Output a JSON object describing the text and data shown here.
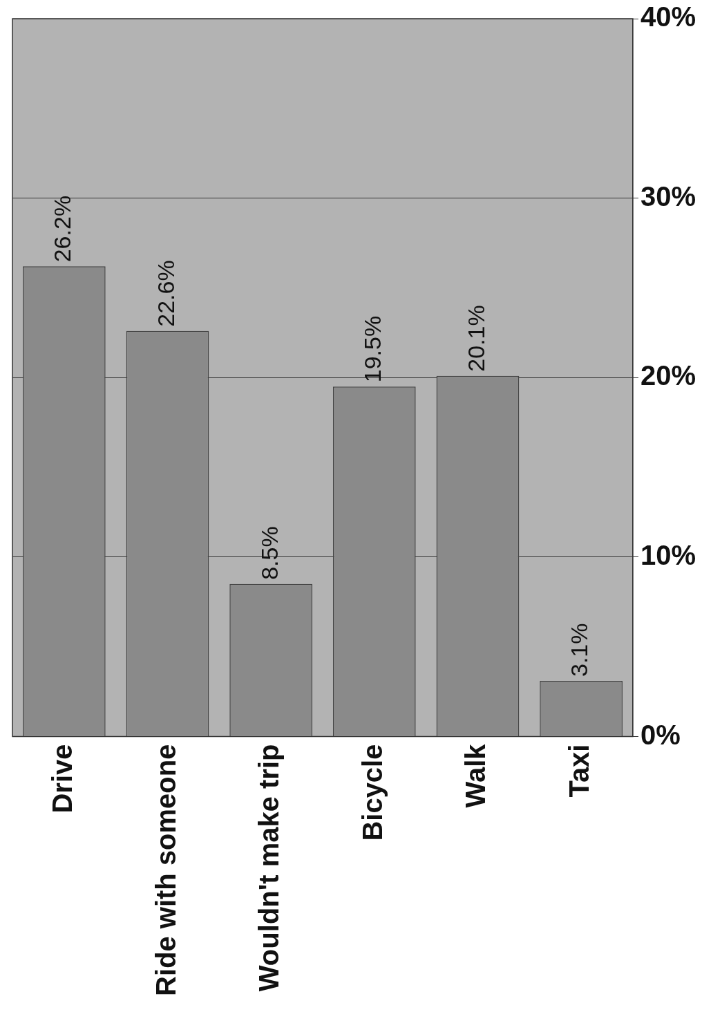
{
  "chart_data": {
    "type": "bar",
    "categories": [
      "Drive",
      "Ride with someone",
      "Wouldn't make trip",
      "Bicycle",
      "Walk",
      "Taxi"
    ],
    "values": [
      26.2,
      22.6,
      8.5,
      19.5,
      20.1,
      3.1
    ],
    "color": "#8a8a8a",
    "ylim": [
      0,
      40
    ],
    "yticks": [
      {
        "value": 0,
        "label": "0%"
      },
      {
        "value": 10,
        "label": "10%"
      },
      {
        "value": 20,
        "label": "20%"
      },
      {
        "value": 30,
        "label": "30%"
      },
      {
        "value": 40,
        "label": "40%"
      }
    ],
    "value_labels": [
      "26.2%",
      "22.6%",
      "8.5%",
      "19.5%",
      "20.1%",
      "3.1%"
    ],
    "grid": "y",
    "legend": false
  }
}
